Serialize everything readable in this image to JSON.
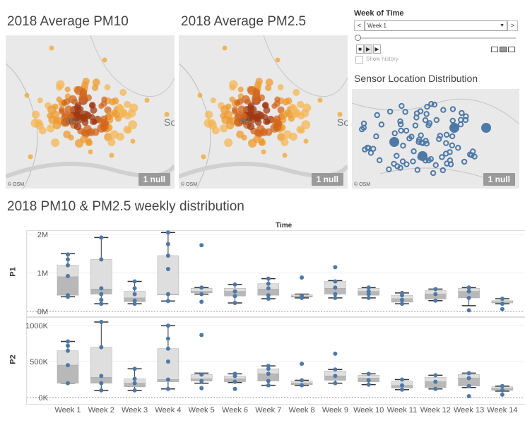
{
  "titles": {
    "pm10": "2018 Average PM10",
    "pm25": "2018 Average PM2.5",
    "sensors": "Sensor Location Distribution",
    "weekly": "2018 PM10 & PM2.5 weekly distribution"
  },
  "map": {
    "attribution": "© OSM",
    "null_badge": "1 null",
    "place_label": "ad",
    "place_label_2": "So"
  },
  "filter": {
    "title": "Week of Time",
    "selected": "Week 1",
    "prev": "<",
    "next": ">",
    "show_history": "Show history",
    "play_controls": [
      "■",
      "▶",
      "▶"
    ]
  },
  "chart": {
    "column_header": "Time",
    "panel_labels": [
      "P1",
      "P2"
    ]
  },
  "chart_data": {
    "type": "box",
    "categories": [
      "Week 1",
      "Week 2",
      "Week 3",
      "Week 4",
      "Week 5",
      "Week 6",
      "Week 7",
      "Week 8",
      "Week 9",
      "Week 10",
      "Week 11",
      "Week 12",
      "Week 13",
      "Week 14"
    ],
    "series": [
      {
        "name": "P1",
        "ylim": [
          0,
          2000000
        ],
        "ticks": [
          {
            "v": 0,
            "label": "0M"
          },
          {
            "v": 1000000,
            "label": "1M"
          },
          {
            "v": 2000000,
            "label": "2M"
          }
        ],
        "boxes": [
          {
            "whisker_low": 380000,
            "q1": 420000,
            "median": 900000,
            "q3": 1200000,
            "whisker_high": 1500000,
            "points": [
              380000,
              420000,
              920000,
              1200000,
              1350000,
              1480000
            ]
          },
          {
            "whisker_low": 200000,
            "q1": 450000,
            "median": 580000,
            "q3": 1350000,
            "whisker_high": 1920000,
            "points": [
              200000,
              300000,
              450000,
              600000,
              1350000,
              1920000
            ]
          },
          {
            "whisker_low": 200000,
            "q1": 250000,
            "median": 350000,
            "q3": 520000,
            "whisker_high": 780000,
            "points": [
              200000,
              280000,
              450000,
              600000,
              780000
            ]
          },
          {
            "whisker_low": 270000,
            "q1": 450000,
            "median": 450000,
            "q3": 1450000,
            "whisker_high": 2050000,
            "points": [
              270000,
              450000,
              1100000,
              1450000,
              1750000,
              2050000
            ]
          },
          {
            "whisker_low": 450000,
            "q1": 480000,
            "median": 520000,
            "q3": 600000,
            "whisker_high": 620000,
            "points": [
              250000,
              450000,
              620000,
              1720000
            ]
          },
          {
            "whisker_low": 220000,
            "q1": 400000,
            "median": 520000,
            "q3": 600000,
            "whisker_high": 700000,
            "points": [
              220000,
              400000,
              520000,
              700000
            ]
          },
          {
            "whisker_low": 330000,
            "q1": 420000,
            "median": 580000,
            "q3": 720000,
            "whisker_high": 850000,
            "points": [
              330000,
              420000,
              600000,
              720000,
              850000
            ]
          },
          {
            "whisker_low": 350000,
            "q1": 370000,
            "median": 400000,
            "q3": 440000,
            "whisker_high": 450000,
            "points": [
              350000,
              400000,
              880000
            ]
          },
          {
            "whisker_low": 350000,
            "q1": 450000,
            "median": 600000,
            "q3": 780000,
            "whisker_high": 800000,
            "points": [
              350000,
              450000,
              620000,
              780000,
              1150000
            ]
          },
          {
            "whisker_low": 350000,
            "q1": 420000,
            "median": 520000,
            "q3": 600000,
            "whisker_high": 620000,
            "points": [
              350000,
              450000,
              520000,
              620000
            ]
          },
          {
            "whisker_low": 200000,
            "q1": 240000,
            "median": 330000,
            "q3": 420000,
            "whisker_high": 480000,
            "points": [
              200000,
              300000,
              420000,
              480000
            ]
          },
          {
            "whisker_low": 280000,
            "q1": 320000,
            "median": 450000,
            "q3": 540000,
            "whisker_high": 580000,
            "points": [
              280000,
              450000,
              580000
            ]
          },
          {
            "whisker_low": 150000,
            "q1": 350000,
            "median": 520000,
            "q3": 600000,
            "whisker_high": 620000,
            "points": [
              30000,
              350000,
              520000,
              620000
            ]
          },
          {
            "whisker_low": 200000,
            "q1": 220000,
            "median": 250000,
            "q3": 280000,
            "whisker_high": 330000,
            "points": [
              60000,
              200000,
              330000
            ]
          }
        ]
      },
      {
        "name": "P2",
        "ylim": [
          0,
          1050000
        ],
        "ticks": [
          {
            "v": 0,
            "label": "0K"
          },
          {
            "v": 500000,
            "label": "500K"
          },
          {
            "v": 1000000,
            "label": "1000K"
          }
        ],
        "boxes": [
          {
            "whisker_low": 200000,
            "q1": 200000,
            "median": 450000,
            "q3": 650000,
            "whisker_high": 780000,
            "points": [
              200000,
              450000,
              650000,
              720000,
              780000
            ]
          },
          {
            "whisker_low": 100000,
            "q1": 200000,
            "median": 280000,
            "q3": 700000,
            "whisker_high": 1050000,
            "points": [
              100000,
              200000,
              300000,
              700000,
              1050000
            ]
          },
          {
            "whisker_low": 100000,
            "q1": 150000,
            "median": 200000,
            "q3": 260000,
            "whisker_high": 400000,
            "points": [
              100000,
              200000,
              260000,
              400000
            ]
          },
          {
            "whisker_low": 120000,
            "q1": 220000,
            "median": 250000,
            "q3": 680000,
            "whisker_high": 1000000,
            "points": [
              120000,
              250000,
              500000,
              680000,
              820000,
              1000000
            ]
          },
          {
            "whisker_low": 200000,
            "q1": 230000,
            "median": 260000,
            "q3": 320000,
            "whisker_high": 340000,
            "points": [
              130000,
              230000,
              320000,
              870000
            ]
          },
          {
            "whisker_low": 210000,
            "q1": 220000,
            "median": 260000,
            "q3": 300000,
            "whisker_high": 330000,
            "points": [
              120000,
              220000,
              300000,
              330000
            ]
          },
          {
            "whisker_low": 170000,
            "q1": 230000,
            "median": 330000,
            "q3": 400000,
            "whisker_high": 440000,
            "points": [
              170000,
              230000,
              330000,
              400000,
              440000
            ]
          },
          {
            "whisker_low": 170000,
            "q1": 180000,
            "median": 200000,
            "q3": 230000,
            "whisker_high": 240000,
            "points": [
              170000,
              240000,
              470000
            ]
          },
          {
            "whisker_low": 200000,
            "q1": 240000,
            "median": 300000,
            "q3": 370000,
            "whisker_high": 390000,
            "points": [
              200000,
              300000,
              390000,
              610000
            ]
          },
          {
            "whisker_low": 180000,
            "q1": 220000,
            "median": 270000,
            "q3": 310000,
            "whisker_high": 330000,
            "points": [
              180000,
              240000,
              330000
            ]
          },
          {
            "whisker_low": 110000,
            "q1": 130000,
            "median": 170000,
            "q3": 230000,
            "whisker_high": 250000,
            "points": [
              110000,
              170000,
              250000
            ]
          },
          {
            "whisker_low": 120000,
            "q1": 140000,
            "median": 220000,
            "q3": 280000,
            "whisker_high": 310000,
            "points": [
              120000,
              220000,
              310000
            ]
          },
          {
            "whisker_low": 140000,
            "q1": 160000,
            "median": 270000,
            "q3": 320000,
            "whisker_high": 340000,
            "points": [
              20000,
              160000,
              270000,
              340000
            ]
          },
          {
            "whisker_low": 90000,
            "q1": 100000,
            "median": 130000,
            "q3": 150000,
            "whisker_high": 160000,
            "points": [
              40000,
              100000,
              160000
            ]
          }
        ]
      }
    ]
  }
}
